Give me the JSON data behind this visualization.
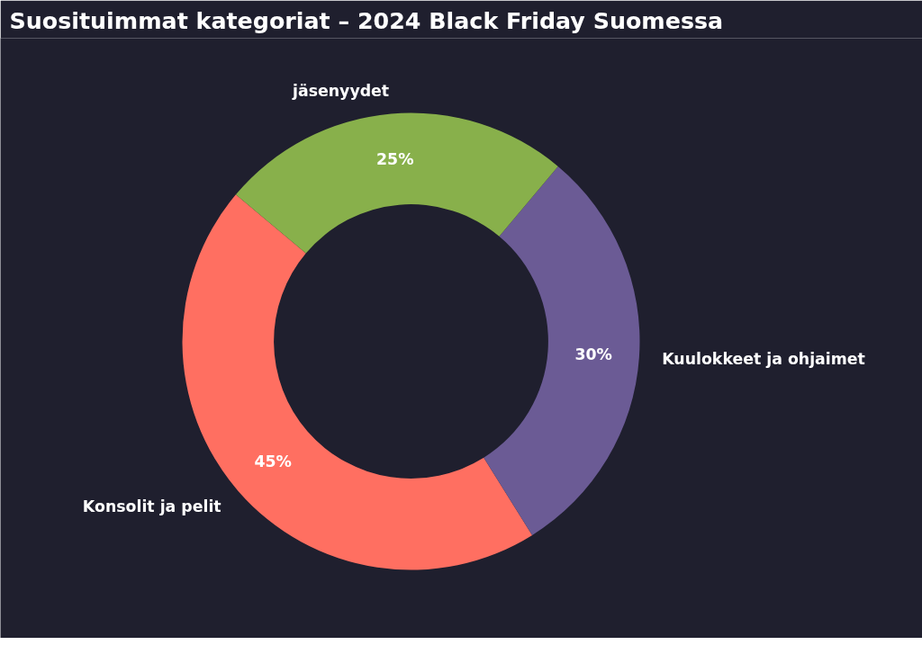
{
  "chart_data": {
    "type": "donut",
    "title": "Suosituimmat kategoriat – 2024 Black Friday Suomessa",
    "categories": [
      "Konsolit ja pelit",
      "Kuulokkeet ja ohjaimet",
      "jäsenyydet"
    ],
    "values": [
      45,
      30,
      25
    ],
    "colors": [
      "#ff6f61",
      "#6b5b95",
      "#88b04b"
    ],
    "value_labels": [
      "45%",
      "30%",
      "25%"
    ]
  }
}
